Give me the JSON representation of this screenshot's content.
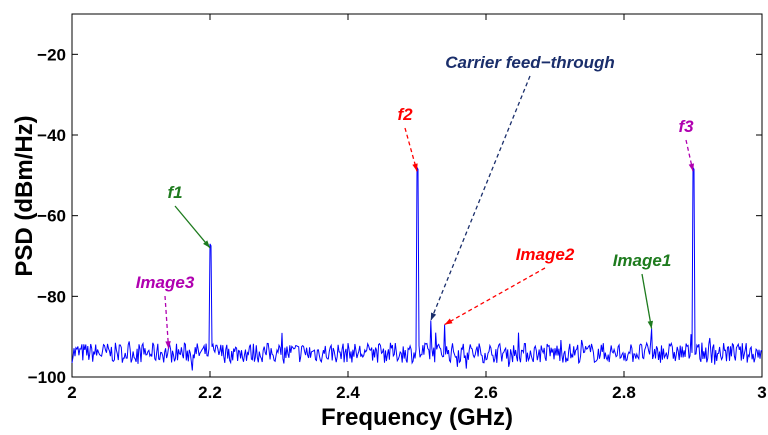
{
  "chart_data": {
    "type": "line",
    "title": "",
    "xlabel": "Frequency (GHz)",
    "ylabel": "PSD (dBm/Hz)",
    "xlim": [
      2,
      3
    ],
    "ylim": [
      -100,
      -10
    ],
    "xticks": [
      2,
      2.2,
      2.4,
      2.6,
      2.8,
      3
    ],
    "xtick_labels": [
      "2",
      "2.2",
      "2.4",
      "2.6",
      "2.8",
      "3"
    ],
    "yticks": [
      -100,
      -80,
      -60,
      -40,
      -20
    ],
    "ytick_labels": [
      "−100",
      "−80",
      "−60",
      "−40",
      "−20"
    ],
    "grid": false,
    "line_color": "#0000ff",
    "noise_floor": -94,
    "peaks": [
      {
        "x": 2.2,
        "y": -67
      },
      {
        "x": 2.5,
        "y": -48
      },
      {
        "x": 2.52,
        "y": -86
      },
      {
        "x": 2.54,
        "y": -87
      },
      {
        "x": 2.84,
        "y": -88
      },
      {
        "x": 2.9,
        "y": -48
      }
    ],
    "annotations": [
      {
        "text": "f1",
        "color": "#1e7b1e",
        "x": 2.2,
        "y": -68
      },
      {
        "text": "f2",
        "color": "#ff0000",
        "x": 2.5,
        "y": -49
      },
      {
        "text": "f3",
        "color": "#b000b0",
        "x": 2.9,
        "y": -49
      },
      {
        "text": "Carrier feed−through",
        "color": "#1a2e6b",
        "x": 2.52,
        "y": -86
      },
      {
        "text": "Image1",
        "color": "#1e7b1e",
        "x": 2.84,
        "y": -88
      },
      {
        "text": "Image2",
        "color": "#ff0000",
        "x": 2.54,
        "y": -87
      },
      {
        "text": "Image3",
        "color": "#b000b0",
        "x": 2.14,
        "y": -93
      }
    ]
  }
}
